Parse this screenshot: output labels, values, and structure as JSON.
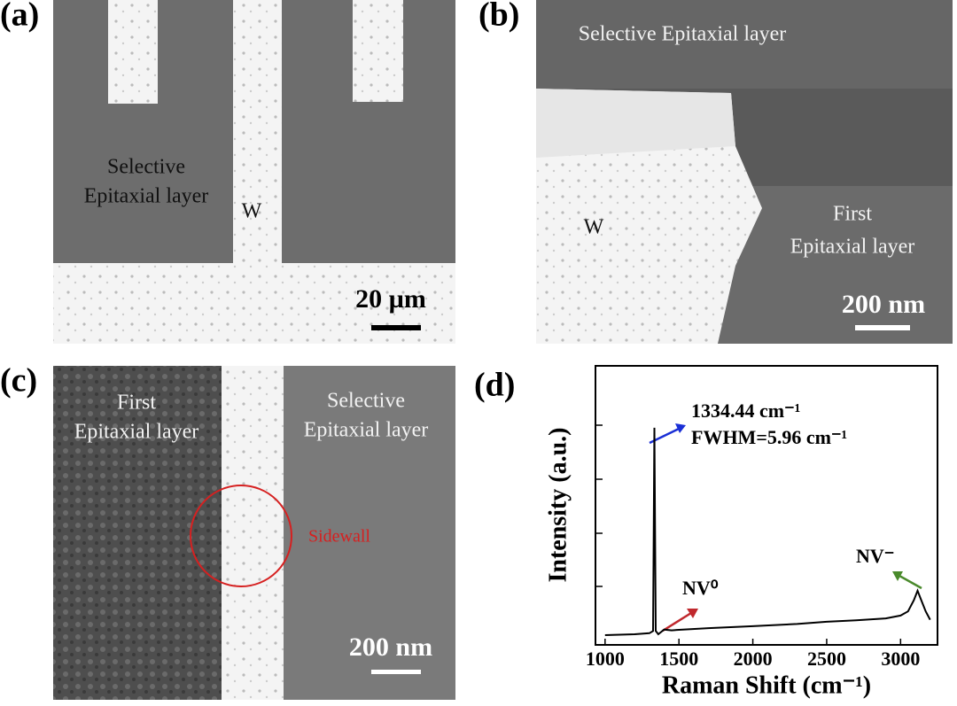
{
  "panels": [
    {
      "label": "(a)",
      "texts": [
        "Selective",
        "Epitaxial layer",
        "W"
      ],
      "scale": "20 µm"
    },
    {
      "label": "(b)",
      "texts": [
        "Selective Epitaxial layer",
        "W",
        "First",
        "Epitaxial layer"
      ],
      "scale": "200 nm"
    },
    {
      "label": "(c)",
      "texts": [
        "First",
        "Epitaxial layer",
        "Selective",
        "Epitaxial layer",
        "Sidewall"
      ],
      "scale": "200 nm"
    },
    {
      "label": "(d)"
    }
  ],
  "chart_data": {
    "type": "line",
    "xlabel": "Raman Shift (cm⁻¹)",
    "ylabel": "Intensity (a.u.)",
    "x": [
      1000,
      1200,
      1300,
      1325,
      1334,
      1343,
      1360,
      1400,
      1450,
      1500,
      1700,
      2000,
      2300,
      2500,
      2700,
      2900,
      3000,
      3050,
      3090,
      3115,
      3140,
      3170,
      3200
    ],
    "values": [
      3.5,
      3.8,
      4.2,
      5,
      77.8,
      5,
      3.8,
      5.5,
      5.2,
      5.4,
      6,
      6.7,
      7.5,
      8.3,
      8.8,
      9.5,
      10.5,
      12,
      16,
      19.4,
      16,
      12,
      9
    ],
    "color": "#000000",
    "xlim": [
      935,
      3250
    ],
    "xticks": [
      1000,
      1500,
      2000,
      2500,
      3000
    ],
    "ylim": [
      0,
      100
    ],
    "annotations": [
      "1334.44 cm⁻¹",
      "FWHM=5.96 cm⁻¹",
      "NV⁰",
      "NV⁻"
    ]
  }
}
